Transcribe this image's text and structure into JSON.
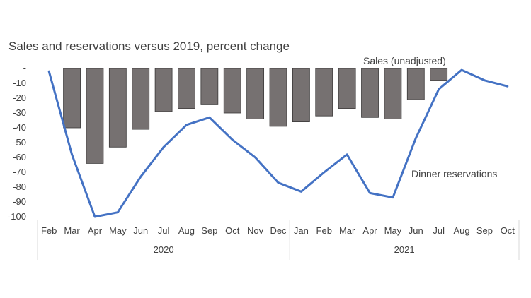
{
  "chart_data": {
    "type": "bar+line",
    "title": "Sales and reservations versus 2019, percent change",
    "months": [
      "Feb",
      "Mar",
      "Apr",
      "May",
      "Jun",
      "Jul",
      "Aug",
      "Sep",
      "Oct",
      "Nov",
      "Dec",
      "Jan",
      "Feb",
      "Mar",
      "Apr",
      "May",
      "Jun",
      "Jul",
      "Aug",
      "Sep",
      "Oct"
    ],
    "years": [
      {
        "label": "2020",
        "start": 0,
        "end": 10
      },
      {
        "label": "2021",
        "start": 11,
        "end": 20
      }
    ],
    "series": [
      {
        "name": "Sales (unadjusted)",
        "type": "bar",
        "color": "#767171",
        "values": [
          null,
          -40,
          -64,
          -53,
          -41,
          -29,
          -27,
          -24,
          -30,
          -34,
          -39,
          -36,
          -32,
          -27,
          -33,
          -34,
          -21,
          -8,
          null,
          null,
          null
        ]
      },
      {
        "name": "Dinner reservations",
        "type": "line",
        "color": "#4472c4",
        "values": [
          -2,
          -58,
          -100,
          -97,
          -73,
          -53,
          -38,
          -33,
          -48,
          -60,
          -77,
          -83,
          -70,
          -58,
          -84,
          -87,
          -47,
          -14,
          -1,
          -8,
          -12
        ]
      }
    ],
    "yticks": [
      "-",
      "-10",
      "-20",
      "-30",
      "-40",
      "-50",
      "-60",
      "-70",
      "-80",
      "-90",
      "-100"
    ],
    "ylim": [
      -100,
      0
    ],
    "grid": false
  }
}
